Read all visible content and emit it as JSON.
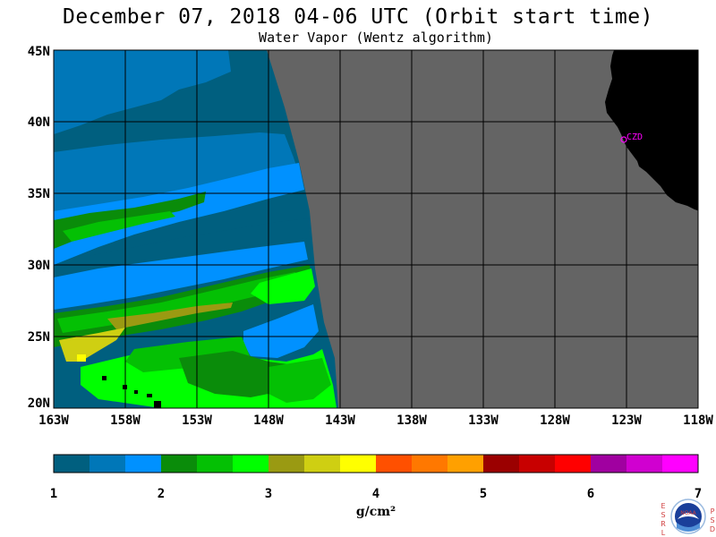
{
  "title": "December 07, 2018  04-06 UTC  (Orbit start time)",
  "subtitle": "Water Vapor (Wentz algorithm)",
  "map": {
    "lat_labels": [
      "45N",
      "40N",
      "35N",
      "30N",
      "25N",
      "20N"
    ],
    "lon_labels": [
      "163W",
      "158W",
      "153W",
      "148W",
      "143W",
      "138W",
      "133W",
      "128W",
      "123W",
      "118W"
    ],
    "lon_range": [
      -163,
      -118
    ],
    "lat_range": [
      20,
      45
    ],
    "station": "CZD",
    "colors": {
      "no_data": "#646464",
      "land": "#000000",
      "station": "#ff00ff"
    }
  },
  "colorbar": {
    "ticks": [
      "1",
      "2",
      "3",
      "4",
      "5",
      "6",
      "7"
    ],
    "unit": "g/cm²",
    "colors": [
      "#005f7f",
      "#0077b8",
      "#0091ff",
      "#0a8c0a",
      "#04c004",
      "#00ff00",
      "#9a9a12",
      "#cfcf12",
      "#ffff00",
      "#ff5000",
      "#ff7800",
      "#ffa000",
      "#9b0000",
      "#c80000",
      "#ff0000",
      "#a000a0",
      "#d000d0",
      "#ff00ff"
    ]
  },
  "logo": {
    "left_letters": [
      "E",
      "S",
      "R",
      "L"
    ],
    "right_letters": [
      "P",
      "S",
      "D"
    ],
    "name": "NOAA"
  }
}
